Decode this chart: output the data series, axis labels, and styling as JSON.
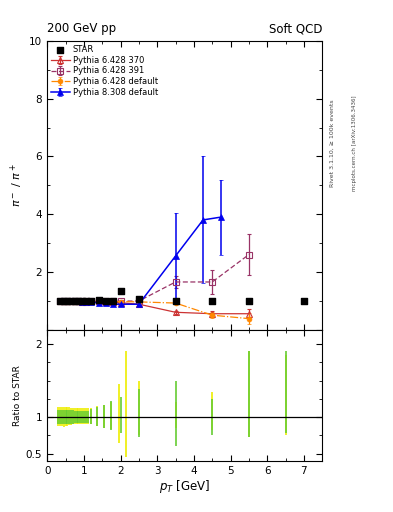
{
  "title_left": "200 GeV pp",
  "title_right": "Soft QCD",
  "ylabel_main": "$\\pi^-$ / $\\pi^+$",
  "ylabel_ratio": "Ratio to STAR",
  "xlabel": "$p_T$ [GeV]",
  "right_label_top": "Rivet 3.1.10, ≥ 100k events",
  "right_label_bot": "mcplots.cern.ch [arXiv:1306.3436]",
  "xlim": [
    0,
    7.5
  ],
  "ylim_main": [
    0,
    10
  ],
  "ylim_ratio": [
    0.4,
    2.2
  ],
  "star_x": [
    0.35,
    0.45,
    0.55,
    0.65,
    0.75,
    0.85,
    0.95,
    1.05,
    1.2,
    1.4,
    1.6,
    1.8,
    2.0,
    2.5,
    3.5,
    4.5,
    5.5,
    7.0
  ],
  "star_y": [
    1.0,
    1.0,
    1.0,
    1.0,
    0.98,
    0.98,
    0.98,
    1.0,
    1.0,
    1.02,
    1.0,
    1.0,
    1.35,
    1.05,
    1.0,
    1.0,
    1.0,
    1.0
  ],
  "p6_370_x": [
    0.35,
    0.45,
    0.55,
    0.65,
    0.75,
    0.85,
    0.95,
    1.05,
    1.2,
    1.4,
    1.6,
    1.8,
    2.0,
    2.5,
    3.5,
    4.5,
    5.5
  ],
  "p6_370_y": [
    1.0,
    1.0,
    1.0,
    1.0,
    0.98,
    0.98,
    0.97,
    0.97,
    0.98,
    0.98,
    0.97,
    0.96,
    0.93,
    0.88,
    0.6,
    0.55,
    0.55
  ],
  "p6_370_yerr": [
    0.0,
    0.0,
    0.0,
    0.0,
    0.0,
    0.0,
    0.0,
    0.0,
    0.0,
    0.01,
    0.01,
    0.01,
    0.02,
    0.02,
    0.05,
    0.1,
    0.15
  ],
  "p6_391_x": [
    0.35,
    0.45,
    0.55,
    0.65,
    0.75,
    0.85,
    0.95,
    1.05,
    1.2,
    1.4,
    1.6,
    1.8,
    2.0,
    2.5,
    3.5,
    4.5,
    5.5
  ],
  "p6_391_y": [
    1.0,
    1.0,
    1.0,
    1.0,
    0.99,
    0.99,
    0.99,
    0.99,
    0.99,
    0.99,
    0.99,
    0.99,
    0.99,
    0.99,
    1.65,
    1.65,
    2.6
  ],
  "p6_391_yerr": [
    0.0,
    0.0,
    0.0,
    0.0,
    0.0,
    0.0,
    0.0,
    0.0,
    0.0,
    0.01,
    0.01,
    0.01,
    0.02,
    0.02,
    0.2,
    0.4,
    0.7
  ],
  "p6_def_x": [
    0.35,
    0.45,
    0.55,
    0.65,
    0.75,
    0.85,
    0.95,
    1.05,
    1.2,
    1.4,
    1.6,
    1.8,
    2.0,
    2.5,
    3.5,
    4.5,
    5.5
  ],
  "p6_def_y": [
    1.0,
    1.0,
    1.0,
    1.0,
    0.99,
    0.99,
    0.98,
    0.98,
    0.98,
    0.98,
    0.98,
    0.97,
    0.97,
    0.96,
    0.92,
    0.5,
    0.38
  ],
  "p6_def_yerr": [
    0.0,
    0.0,
    0.0,
    0.0,
    0.0,
    0.0,
    0.0,
    0.0,
    0.0,
    0.01,
    0.01,
    0.01,
    0.02,
    0.02,
    0.05,
    0.1,
    0.2
  ],
  "p8_def_x": [
    0.35,
    0.45,
    0.55,
    0.65,
    0.75,
    0.85,
    0.95,
    1.05,
    1.2,
    1.4,
    1.6,
    1.8,
    2.0,
    2.5,
    3.5,
    4.25,
    4.75
  ],
  "p8_def_y": [
    1.0,
    1.0,
    1.0,
    1.0,
    0.98,
    0.98,
    0.97,
    0.97,
    0.95,
    0.93,
    0.92,
    0.88,
    0.88,
    0.88,
    2.55,
    3.8,
    3.9
  ],
  "p8_def_yerr": [
    0.0,
    0.0,
    0.0,
    0.0,
    0.0,
    0.0,
    0.0,
    0.0,
    0.01,
    0.01,
    0.01,
    0.02,
    0.03,
    0.05,
    1.5,
    2.2,
    1.3
  ],
  "color_star": "#000000",
  "color_p6_370": "#cc3333",
  "color_p6_391": "#993366",
  "color_p6_def": "#ff8800",
  "color_p8_def": "#0000ee",
  "ratio_yellow_x": [
    0.3,
    0.35,
    0.4,
    0.45,
    0.5,
    0.55,
    0.6,
    0.65,
    0.7,
    0.75,
    0.8,
    0.85,
    0.9,
    0.95,
    1.0,
    1.05,
    1.1,
    1.2,
    1.35,
    1.55,
    1.75,
    1.95,
    2.15,
    2.5,
    3.5,
    4.5,
    5.5,
    6.5
  ],
  "ratio_yellow_lo": [
    0.88,
    0.88,
    0.88,
    0.87,
    0.88,
    0.88,
    0.89,
    0.89,
    0.9,
    0.9,
    0.9,
    0.91,
    0.91,
    0.91,
    0.91,
    0.91,
    0.91,
    0.91,
    0.88,
    0.85,
    0.83,
    0.65,
    0.45,
    0.75,
    0.85,
    0.82,
    0.72,
    0.75
  ],
  "ratio_yellow_hi": [
    1.14,
    1.14,
    1.14,
    1.14,
    1.14,
    1.14,
    1.14,
    1.13,
    1.13,
    1.13,
    1.12,
    1.12,
    1.12,
    1.12,
    1.12,
    1.12,
    1.12,
    1.12,
    1.15,
    1.17,
    1.2,
    1.45,
    1.9,
    1.5,
    1.2,
    1.35,
    1.9,
    1.85
  ],
  "ratio_green_x": [
    0.3,
    0.35,
    0.4,
    0.45,
    0.5,
    0.55,
    0.6,
    0.65,
    0.7,
    0.75,
    0.8,
    0.85,
    0.9,
    0.95,
    1.0,
    1.05,
    1.1,
    1.2,
    1.35,
    1.55,
    1.75,
    2.0,
    2.5,
    3.5,
    4.5,
    5.5,
    6.5
  ],
  "ratio_green_lo": [
    0.9,
    0.9,
    0.9,
    0.9,
    0.9,
    0.9,
    0.91,
    0.91,
    0.91,
    0.92,
    0.92,
    0.92,
    0.92,
    0.92,
    0.92,
    0.92,
    0.92,
    0.9,
    0.88,
    0.85,
    0.82,
    0.78,
    0.72,
    0.6,
    0.75,
    0.72,
    0.78
  ],
  "ratio_green_hi": [
    1.1,
    1.1,
    1.1,
    1.1,
    1.1,
    1.1,
    1.1,
    1.1,
    1.1,
    1.09,
    1.09,
    1.09,
    1.09,
    1.09,
    1.09,
    1.09,
    1.09,
    1.11,
    1.14,
    1.17,
    1.22,
    1.28,
    1.38,
    1.5,
    1.25,
    1.9,
    1.9
  ]
}
